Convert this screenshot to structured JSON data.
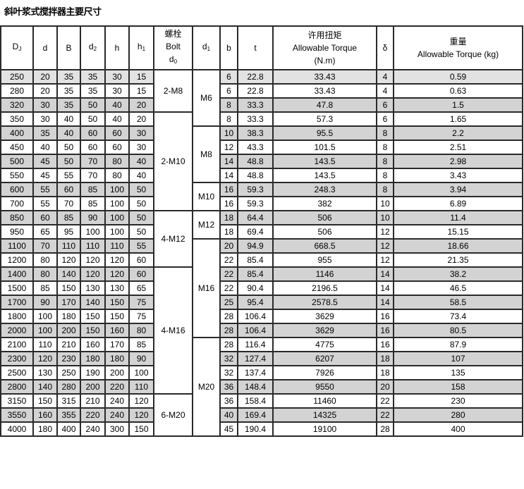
{
  "title": "斜叶浆式搅拌器主要尺寸",
  "headers": {
    "Dj": "D",
    "Dj_sub": "J",
    "d": "d",
    "B": "B",
    "d2": "d",
    "d2_sub": "2",
    "h": "h",
    "h1": "h",
    "h1_sub": "1",
    "bolt_cn": "螺栓",
    "bolt_en": "Bolt",
    "bolt_d": "d",
    "bolt_d_sub": "0",
    "d1": "d",
    "d1_sub": "1",
    "b": "b",
    "t": "t",
    "torque_cn": "许用扭矩",
    "torque_en": "Allowable Torque",
    "torque_unit": "(N.m)",
    "delta": "δ",
    "weight_cn": "重量",
    "weight_en": "Allowable Torque (kg)"
  },
  "rows": [
    [
      "250",
      "20",
      "35",
      "35",
      "30",
      "15",
      "6",
      "22.8",
      "33.43",
      "4",
      "0.59"
    ],
    [
      "280",
      "20",
      "35",
      "35",
      "30",
      "15",
      "6",
      "22.8",
      "33.43",
      "4",
      "0.63"
    ],
    [
      "320",
      "30",
      "35",
      "50",
      "40",
      "20",
      "8",
      "33.3",
      "47.8",
      "6",
      "1.5"
    ],
    [
      "350",
      "30",
      "40",
      "50",
      "40",
      "20",
      "8",
      "33.3",
      "57.3",
      "6",
      "1.65"
    ],
    [
      "400",
      "35",
      "40",
      "60",
      "60",
      "30",
      "10",
      "38.3",
      "95.5",
      "8",
      "2.2"
    ],
    [
      "450",
      "40",
      "50",
      "60",
      "60",
      "30",
      "12",
      "43.3",
      "101.5",
      "8",
      "2.51"
    ],
    [
      "500",
      "45",
      "50",
      "70",
      "80",
      "40",
      "14",
      "48.8",
      "143.5",
      "8",
      "2.98"
    ],
    [
      "550",
      "45",
      "55",
      "70",
      "80",
      "40",
      "14",
      "48.8",
      "143.5",
      "8",
      "3.43"
    ],
    [
      "600",
      "55",
      "60",
      "85",
      "100",
      "50",
      "16",
      "59.3",
      "248.3",
      "8",
      "3.94"
    ],
    [
      "700",
      "55",
      "70",
      "85",
      "100",
      "50",
      "16",
      "59.3",
      "382",
      "10",
      "6.89"
    ],
    [
      "850",
      "60",
      "85",
      "90",
      "100",
      "50",
      "18",
      "64.4",
      "506",
      "10",
      "11.4"
    ],
    [
      "950",
      "65",
      "95",
      "100",
      "100",
      "50",
      "18",
      "69.4",
      "506",
      "12",
      "15.15"
    ],
    [
      "1100",
      "70",
      "110",
      "110",
      "110",
      "55",
      "20",
      "94.9",
      "668.5",
      "12",
      "18.66"
    ],
    [
      "1200",
      "80",
      "120",
      "120",
      "120",
      "60",
      "22",
      "85.4",
      "955",
      "12",
      "21.35"
    ],
    [
      "1400",
      "80",
      "140",
      "120",
      "120",
      "60",
      "22",
      "85.4",
      "1146",
      "14",
      "38.2"
    ],
    [
      "1500",
      "85",
      "150",
      "130",
      "130",
      "65",
      "22",
      "90.4",
      "2196.5",
      "14",
      "46.5"
    ],
    [
      "1700",
      "90",
      "170",
      "140",
      "150",
      "75",
      "25",
      "95.4",
      "2578.5",
      "14",
      "58.5"
    ],
    [
      "1800",
      "100",
      "180",
      "150",
      "150",
      "75",
      "28",
      "106.4",
      "3629",
      "16",
      "73.4"
    ],
    [
      "2000",
      "100",
      "200",
      "150",
      "160",
      "80",
      "28",
      "106.4",
      "3629",
      "16",
      "80.5"
    ],
    [
      "2100",
      "110",
      "210",
      "160",
      "170",
      "85",
      "28",
      "116.4",
      "4775",
      "16",
      "87.9"
    ],
    [
      "2300",
      "120",
      "230",
      "180",
      "180",
      "90",
      "32",
      "127.4",
      "6207",
      "18",
      "107"
    ],
    [
      "2500",
      "130",
      "250",
      "190",
      "200",
      "100",
      "32",
      "137.4",
      "7926",
      "18",
      "135"
    ],
    [
      "2800",
      "140",
      "280",
      "200",
      "220",
      "110",
      "36",
      "148.4",
      "9550",
      "20",
      "158"
    ],
    [
      "3150",
      "150",
      "315",
      "210",
      "240",
      "120",
      "36",
      "158.4",
      "11460",
      "22",
      "230"
    ],
    [
      "3550",
      "160",
      "355",
      "220",
      "240",
      "120",
      "40",
      "169.4",
      "14325",
      "22",
      "280"
    ],
    [
      "4000",
      "180",
      "400",
      "240",
      "300",
      "150",
      "45",
      "190.4",
      "19100",
      "28",
      "400"
    ]
  ],
  "bolt_groups": [
    {
      "label": "2-M8",
      "rows": 3
    },
    {
      "label": "2-M10",
      "rows": 7
    },
    {
      "label": "4-M12",
      "rows": 4
    },
    {
      "label": "4-M16",
      "rows": 9
    },
    {
      "label": "6-M20",
      "rows": 3
    }
  ],
  "d1_groups": [
    {
      "label": "M6",
      "rows": 4
    },
    {
      "label": "M8",
      "rows": 4
    },
    {
      "label": "M10",
      "rows": 2
    },
    {
      "label": "M12",
      "rows": 2
    },
    {
      "label": "M16",
      "rows": 7
    },
    {
      "label": "M20",
      "rows": 7
    }
  ],
  "colors": {
    "shaded_row": "#d3d3d3",
    "border": "#2a2a2a"
  }
}
